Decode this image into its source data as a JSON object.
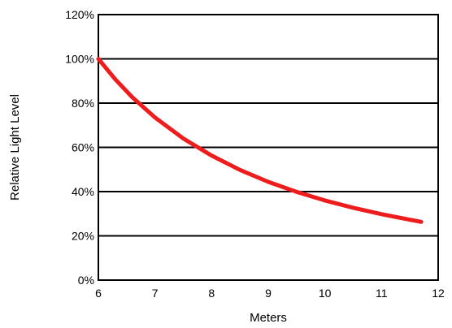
{
  "chart_data": {
    "type": "line",
    "title": "",
    "xlabel": "Meters",
    "ylabel": "Relative Light Level",
    "xlim": [
      6,
      12
    ],
    "ylim": [
      0,
      120
    ],
    "x_ticks": [
      6,
      7,
      8,
      9,
      10,
      11,
      12
    ],
    "y_ticks": [
      0,
      20,
      40,
      60,
      80,
      100,
      120
    ],
    "y_tick_labels": [
      "0%",
      "20%",
      "40%",
      "60%",
      "80%",
      "100%",
      "120%"
    ],
    "x_tick_labels": [
      "6",
      "7",
      "8",
      "9",
      "10",
      "11",
      "12"
    ],
    "grid": "horizontal",
    "legend": "none",
    "series": [
      {
        "color": "#ee1c1c",
        "x": [
          6.0,
          6.3,
          6.6,
          7.0,
          7.5,
          8.0,
          8.5,
          9.0,
          9.5,
          10.0,
          10.5,
          11.0,
          11.7
        ],
        "y": [
          100,
          90.7,
          82.6,
          73.5,
          64.0,
          56.3,
          49.8,
          44.4,
          39.9,
          36.0,
          32.7,
          29.8,
          26.3
        ]
      }
    ]
  }
}
